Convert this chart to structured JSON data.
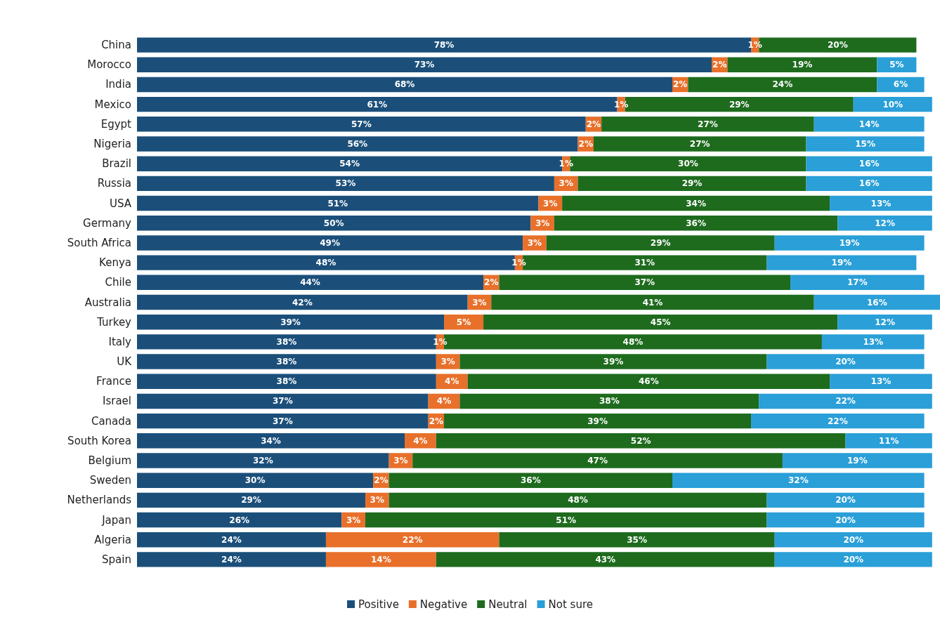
{
  "chart_data": {
    "type": "bar",
    "orientation": "horizontal",
    "stacked": true,
    "legend": "bottom",
    "grid": false,
    "categories": [
      "China",
      "Morocco",
      "India",
      "Mexico",
      "Egypt",
      "Nigeria",
      "Brazil",
      "Russia",
      "USA",
      "Germany",
      "South Africa",
      "Kenya",
      "Chile",
      "Australia",
      "Turkey",
      "Italy",
      "UK",
      "France",
      "Israel",
      "Canada",
      "South Korea",
      "Belgium",
      "Sweden",
      "Netherlands",
      "Japan",
      "Algeria",
      "Spain"
    ],
    "series": [
      {
        "name": "Positive",
        "color": "#1b4f7a",
        "values": [
          78,
          73,
          68,
          61,
          57,
          56,
          54,
          53,
          51,
          50,
          49,
          48,
          44,
          42,
          39,
          38,
          38,
          38,
          37,
          37,
          34,
          32,
          30,
          29,
          26,
          24,
          24
        ],
        "value_labels": [
          "78%",
          "73%",
          "68%",
          "61%",
          "57%",
          "56%",
          "54%",
          "53%",
          "51%",
          "50%",
          "49%",
          "48%",
          "44%",
          "42%",
          "39%",
          "38%",
          "38%",
          "38%",
          "37%",
          "37%",
          "34%",
          "32%",
          "30%",
          "29%",
          "26%",
          "24%",
          "24%"
        ]
      },
      {
        "name": "Negative",
        "color": "#e8702a",
        "values": [
          1,
          2,
          2,
          1,
          2,
          2,
          1,
          3,
          3,
          3,
          3,
          1,
          2,
          3,
          5,
          1,
          3,
          4,
          4,
          2,
          4,
          3,
          2,
          3,
          3,
          22,
          14
        ],
        "value_labels": [
          "1%",
          "2%",
          "2%",
          "1%",
          "2%",
          "2%",
          "1%",
          "3%",
          "3%",
          "3%",
          "3%",
          "1%",
          "2%",
          "3%",
          "5%",
          "1%",
          "3%",
          "4%",
          "4%",
          "2%",
          "4%",
          "3%",
          "2%",
          "3%",
          "3%",
          "22%",
          "14%"
        ]
      },
      {
        "name": "Neutral",
        "color": "#1e6b1e",
        "values": [
          20,
          19,
          24,
          29,
          27,
          27,
          30,
          29,
          34,
          36,
          29,
          31,
          37,
          41,
          45,
          48,
          39,
          46,
          38,
          39,
          52,
          47,
          36,
          48,
          51,
          35,
          43
        ],
        "value_labels": [
          "20%",
          "19%",
          "24%",
          "29%",
          "27%",
          "27%",
          "30%",
          "29%",
          "34%",
          "36%",
          "29%",
          "31%",
          "37%",
          "41%",
          "45%",
          "48%",
          "39%",
          "46%",
          "38%",
          "39%",
          "52%",
          "47%",
          "36%",
          "48%",
          "51%",
          "35%",
          "43%"
        ]
      },
      {
        "name": "Not sure",
        "color": "#2a9fd8",
        "values": [
          null,
          5,
          6,
          10,
          14,
          15,
          16,
          16,
          13,
          12,
          19,
          19,
          17,
          16,
          12,
          13,
          20,
          13,
          22,
          22,
          11,
          19,
          32,
          20,
          20,
          20,
          20
        ],
        "value_labels": [
          null,
          "5%",
          "6%",
          "10%",
          "14%",
          "15%",
          "16%",
          "16%",
          "13%",
          "12%",
          "19%",
          "19%",
          "17%",
          "16%",
          "12%",
          "13%",
          "20%",
          "13%",
          "22%",
          "22%",
          "11%",
          "19%",
          "32%",
          "20%",
          "20%",
          "20%",
          "20%"
        ]
      }
    ]
  }
}
